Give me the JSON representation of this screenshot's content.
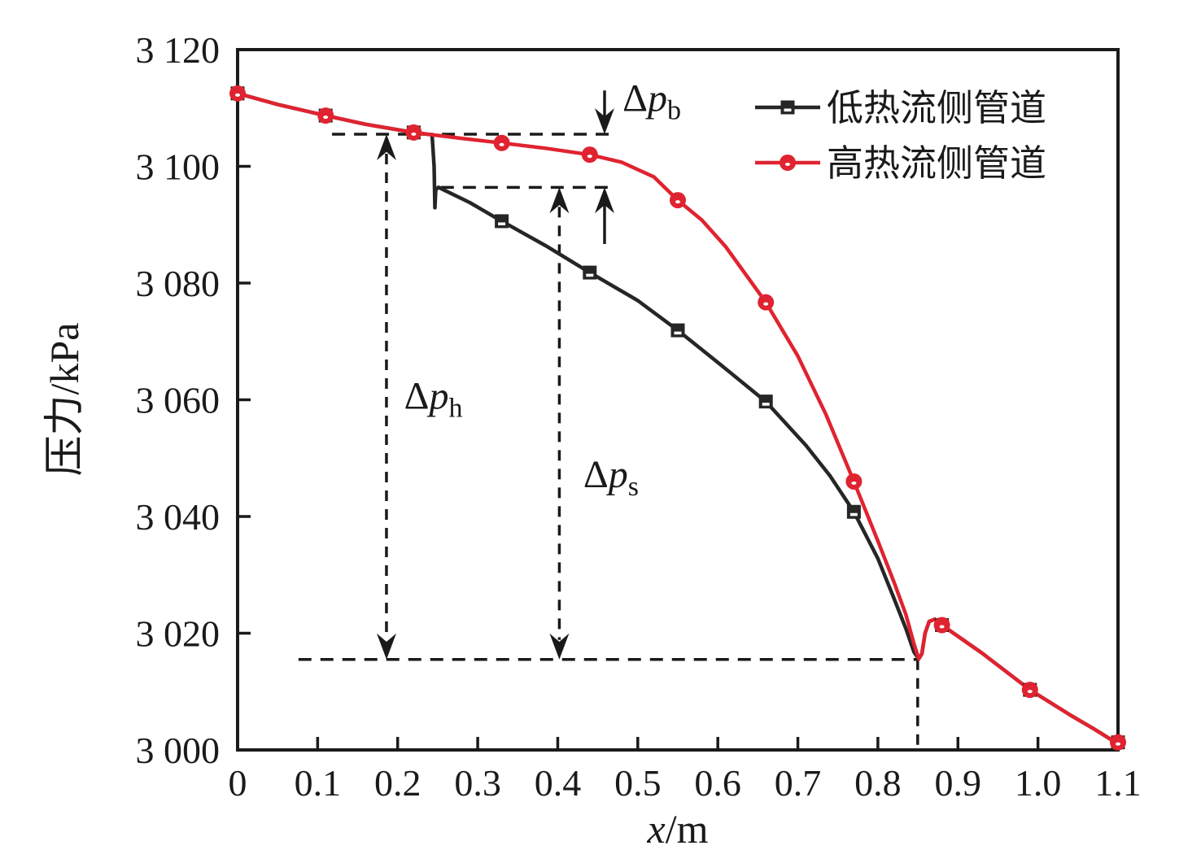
{
  "chart_data": {
    "type": "line",
    "title": "",
    "xlabel": {
      "symbol": "x",
      "rest": "/m"
    },
    "ylabel": "压力/kPa",
    "xlim": [
      0,
      1.1
    ],
    "ylim": [
      3000,
      3120
    ],
    "grid": false,
    "x_ticks": [
      {
        "v": 0.0,
        "label": "0"
      },
      {
        "v": 0.1,
        "label": "0.1"
      },
      {
        "v": 0.2,
        "label": "0.2"
      },
      {
        "v": 0.3,
        "label": "0.3"
      },
      {
        "v": 0.4,
        "label": "0.4"
      },
      {
        "v": 0.5,
        "label": "0.5"
      },
      {
        "v": 0.6,
        "label": "0.6"
      },
      {
        "v": 0.7,
        "label": "0.7"
      },
      {
        "v": 0.8,
        "label": "0.8"
      },
      {
        "v": 0.9,
        "label": "0.9"
      },
      {
        "v": 1.0,
        "label": "1.0"
      },
      {
        "v": 1.1,
        "label": "1.1"
      }
    ],
    "y_ticks": [
      {
        "v": 3000,
        "label": "3 000"
      },
      {
        "v": 3020,
        "label": "3 020"
      },
      {
        "v": 3040,
        "label": "3 040"
      },
      {
        "v": 3060,
        "label": "3 060"
      },
      {
        "v": 3080,
        "label": "3 080"
      },
      {
        "v": 3100,
        "label": "3 100"
      },
      {
        "v": 3120,
        "label": "3 120"
      }
    ],
    "legend": {
      "position": "top-right-inside",
      "items": [
        {
          "label": "低热流侧管道",
          "color": "#262626",
          "marker": "square"
        },
        {
          "label": "高热流侧管道",
          "color": "#e02330",
          "marker": "circle"
        }
      ]
    },
    "series": [
      {
        "name": "低热流侧管道",
        "color": "#262626",
        "marker": "square",
        "points": [
          [
            0,
            3112.5
          ],
          [
            0.11,
            3108.7
          ],
          [
            0.22,
            3105.8
          ],
          [
            0.33,
            3090.6
          ],
          [
            0.44,
            3081.8
          ],
          [
            0.55,
            3071.9
          ],
          [
            0.66,
            3059.7
          ],
          [
            0.77,
            3040.8
          ],
          [
            0.88,
            3021.4
          ],
          [
            0.99,
            3010.3
          ],
          [
            1.1,
            3001.3
          ]
        ],
        "path": [
          [
            0,
            3112.5
          ],
          [
            0.05,
            3110.6
          ],
          [
            0.11,
            3108.7
          ],
          [
            0.16,
            3107.2
          ],
          [
            0.22,
            3105.8
          ],
          [
            0.243,
            3105.4
          ],
          [
            0.2455,
            3100.0
          ],
          [
            0.2465,
            3092.9
          ],
          [
            0.2475,
            3096.0
          ],
          [
            0.251,
            3096.4
          ],
          [
            0.29,
            3093.8
          ],
          [
            0.33,
            3090.6
          ],
          [
            0.385,
            3086.4
          ],
          [
            0.44,
            3081.8
          ],
          [
            0.5,
            3077.0
          ],
          [
            0.55,
            3071.9
          ],
          [
            0.6,
            3066.4
          ],
          [
            0.66,
            3059.7
          ],
          [
            0.71,
            3052.2
          ],
          [
            0.74,
            3047.0
          ],
          [
            0.77,
            3040.8
          ],
          [
            0.8,
            3032.8
          ],
          [
            0.82,
            3026.0
          ],
          [
            0.835,
            3020.8
          ],
          [
            0.845,
            3016.8
          ],
          [
            0.851,
            3015.6
          ],
          [
            0.855,
            3016.5
          ],
          [
            0.859,
            3020.0
          ],
          [
            0.864,
            3022.0
          ],
          [
            0.871,
            3022.4
          ],
          [
            0.88,
            3021.4
          ],
          [
            0.93,
            3016.6
          ],
          [
            0.99,
            3010.3
          ],
          [
            1.04,
            3006.0
          ],
          [
            1.07,
            3003.6
          ],
          [
            1.09,
            3001.9
          ],
          [
            1.1,
            3001.3
          ]
        ]
      },
      {
        "name": "高热流侧管道",
        "color": "#e02330",
        "marker": "circle",
        "points": [
          [
            0,
            3112.5
          ],
          [
            0.11,
            3108.7
          ],
          [
            0.22,
            3105.8
          ],
          [
            0.33,
            3104.0
          ],
          [
            0.44,
            3102.0
          ],
          [
            0.55,
            3094.2
          ],
          [
            0.66,
            3076.7
          ],
          [
            0.77,
            3046.0
          ],
          [
            0.88,
            3021.4
          ],
          [
            0.99,
            3010.3
          ],
          [
            1.1,
            3001.3
          ]
        ],
        "path": [
          [
            0,
            3112.5
          ],
          [
            0.05,
            3110.6
          ],
          [
            0.11,
            3108.7
          ],
          [
            0.16,
            3107.2
          ],
          [
            0.22,
            3105.8
          ],
          [
            0.28,
            3104.8
          ],
          [
            0.33,
            3104.0
          ],
          [
            0.385,
            3103.1
          ],
          [
            0.44,
            3102.0
          ],
          [
            0.48,
            3100.7
          ],
          [
            0.52,
            3098.2
          ],
          [
            0.55,
            3094.2
          ],
          [
            0.58,
            3090.8
          ],
          [
            0.61,
            3086.2
          ],
          [
            0.66,
            3076.7
          ],
          [
            0.7,
            3067.5
          ],
          [
            0.735,
            3057.5
          ],
          [
            0.77,
            3046.0
          ],
          [
            0.8,
            3035.8
          ],
          [
            0.82,
            3028.8
          ],
          [
            0.835,
            3023.2
          ],
          [
            0.845,
            3018.2
          ],
          [
            0.851,
            3015.6
          ],
          [
            0.855,
            3016.5
          ],
          [
            0.859,
            3020.0
          ],
          [
            0.864,
            3022.0
          ],
          [
            0.871,
            3022.4
          ],
          [
            0.88,
            3021.4
          ],
          [
            0.93,
            3016.6
          ],
          [
            0.99,
            3010.3
          ],
          [
            1.04,
            3006.0
          ],
          [
            1.07,
            3003.6
          ],
          [
            1.09,
            3001.9
          ],
          [
            1.1,
            3001.3
          ]
        ]
      }
    ],
    "annotations": {
      "guides": [
        {
          "type": "hline",
          "y": 3105.5,
          "x1": 0.118,
          "x2": 0.471,
          "name": "guide-high-pressure-level"
        },
        {
          "type": "hline",
          "y": 3096.4,
          "x1": 0.254,
          "x2": 0.471,
          "name": "guide-low-pressure-level"
        },
        {
          "type": "hline",
          "y": 3015.5,
          "x1": 0.076,
          "x2": 0.8497,
          "name": "guide-dip-pressure-level"
        },
        {
          "type": "vline",
          "x": 0.8497,
          "y1": 3015.5,
          "y2": 3000,
          "name": "guide-dip-position"
        }
      ],
      "arrows": [
        {
          "x": 0.186,
          "y1": 3105.5,
          "y2": 3015.5,
          "style": "dashed",
          "heads": "both",
          "name": "dp-h-arrow"
        },
        {
          "x": 0.402,
          "y1": 3096.4,
          "y2": 3015.5,
          "style": "dashed",
          "heads": "both",
          "name": "dp-s-arrow"
        },
        {
          "x": 0.4585,
          "y1": 3113.0,
          "y2": 3105.5,
          "style": "solid",
          "heads": "end",
          "name": "dp-b-down-arrow"
        },
        {
          "x": 0.4585,
          "y1": 3086.7,
          "y2": 3096.4,
          "style": "solid",
          "heads": "end",
          "name": "dp-b-up-arrow"
        }
      ],
      "labels": [
        {
          "prefix": "Δ",
          "symbol": "p",
          "sub": "h",
          "x": 0.208,
          "y": 3058.5,
          "name": "dp-h-label"
        },
        {
          "prefix": "Δ",
          "symbol": "p",
          "sub": "s",
          "x": 0.432,
          "y": 3045.0,
          "name": "dp-s-label"
        },
        {
          "prefix": "Δ",
          "symbol": "p",
          "sub": "b",
          "x": 0.481,
          "y": 3109.5,
          "name": "dp-b-label"
        }
      ]
    }
  }
}
